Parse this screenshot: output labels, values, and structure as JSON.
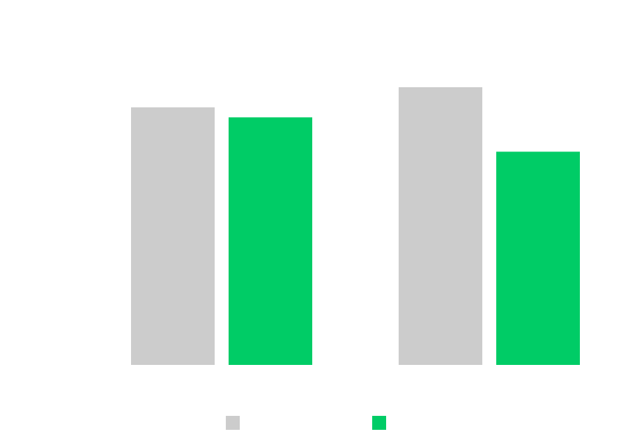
{
  "chart_data": {
    "type": "bar",
    "title": "",
    "xlabel": "",
    "ylabel": "",
    "categories": [
      "",
      ""
    ],
    "ylim": [
      0,
      100
    ],
    "grid": false,
    "legend_position": "bottom",
    "series": [
      {
        "color": "#cccccc",
        "values": [
          92.3,
          99.5
        ]
      },
      {
        "color": "#00cc66",
        "values": [
          88.7,
          76.4
        ]
      }
    ]
  }
}
